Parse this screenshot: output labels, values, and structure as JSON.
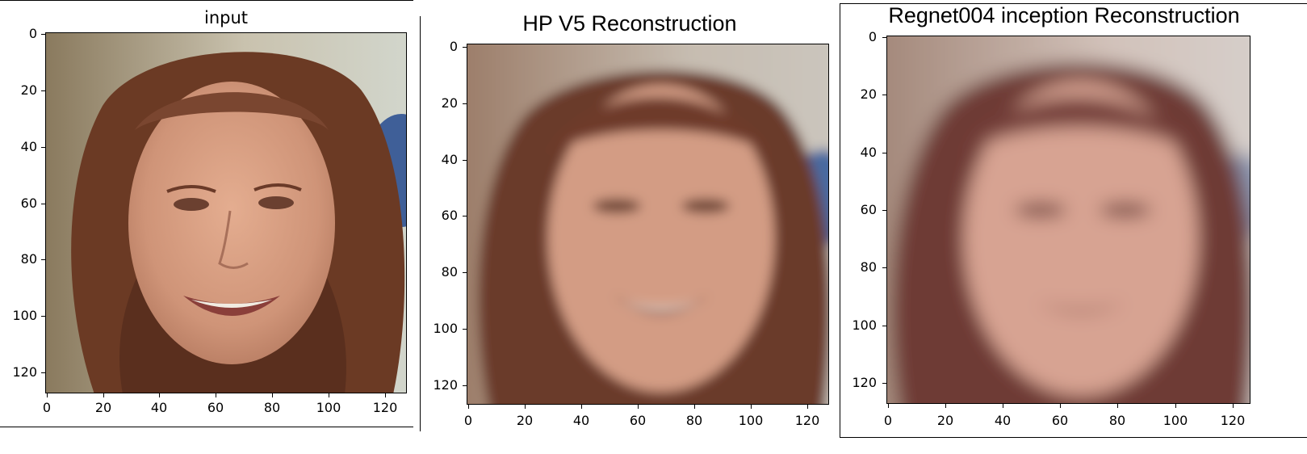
{
  "panels": [
    {
      "title": "input",
      "yticks": [
        "0",
        "20",
        "40",
        "60",
        "80",
        "100",
        "120"
      ],
      "xticks": [
        "0",
        "20",
        "40",
        "60",
        "80",
        "100",
        "120"
      ],
      "image": "sharp portrait photo of smiling woman with long brown hair"
    },
    {
      "title": "HP V5 Reconstruction",
      "yticks": [
        "0",
        "20",
        "40",
        "60",
        "80",
        "100",
        "120"
      ],
      "xticks": [
        "0",
        "20",
        "40",
        "60",
        "80",
        "100",
        "120"
      ],
      "image": "blurred reconstruction of the portrait"
    },
    {
      "title": "Regnet004 inception Reconstruction",
      "yticks": [
        "0",
        "20",
        "40",
        "60",
        "80",
        "100",
        "120"
      ],
      "xticks": [
        "0",
        "20",
        "40",
        "60",
        "80",
        "100",
        "120"
      ],
      "image": "more blurred reconstruction of the portrait"
    }
  ],
  "colors": {
    "skin": "#d8a48a",
    "hair": "#6a3b26",
    "background_light": "#c9c2b4",
    "background_blue": "#4a6aa0"
  }
}
